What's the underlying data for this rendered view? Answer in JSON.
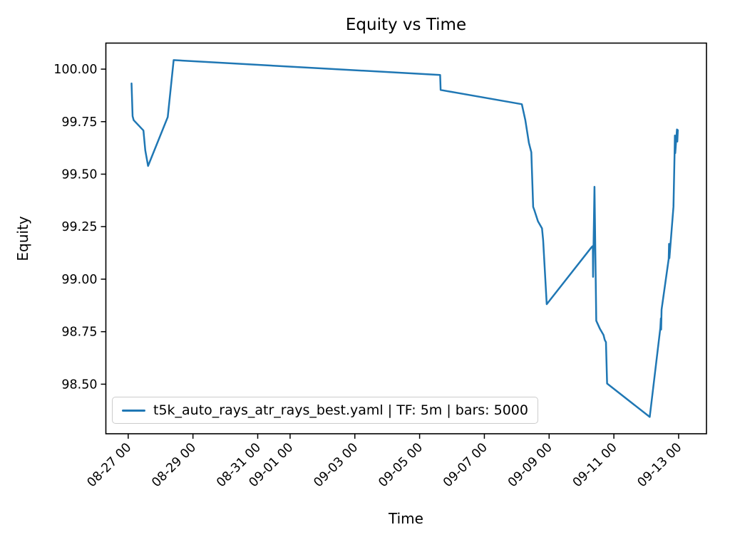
{
  "figure": {
    "background": "#ffffff",
    "spine_color": "#000000",
    "tick_color": "#000000"
  },
  "chart_data": {
    "type": "line",
    "title": "Equity vs Time",
    "xlabel": "Time",
    "ylabel": "Equity",
    "grid": false,
    "x_unit": "days since 08-27 00:00",
    "xlim": [
      -0.69,
      17.86
    ],
    "ylim": [
      98.264,
      100.124
    ],
    "yticks": [
      98.5,
      98.75,
      99.0,
      99.25,
      99.5,
      99.75,
      100.0
    ],
    "xticks": [
      {
        "label": "08-27 00",
        "d": 0
      },
      {
        "label": "08-29 00",
        "d": 2
      },
      {
        "label": "08-31 00",
        "d": 4
      },
      {
        "label": "09-01 00",
        "d": 5
      },
      {
        "label": "09-03 00",
        "d": 7
      },
      {
        "label": "09-05 00",
        "d": 9
      },
      {
        "label": "09-07 00",
        "d": 11
      },
      {
        "label": "09-09 00",
        "d": 13
      },
      {
        "label": "09-11 00",
        "d": 15
      },
      {
        "label": "09-13 00",
        "d": 17
      }
    ],
    "legend": {
      "position": "lower left"
    },
    "series": [
      {
        "name": "t5k_auto_rays_atr_rays_best.yaml | TF: 5m | bars: 5000",
        "color": "#1f77b4",
        "line_width": 2.5,
        "points": [
          [
            0.103,
            99.932
          ],
          [
            0.136,
            99.776
          ],
          [
            0.169,
            99.757
          ],
          [
            0.47,
            99.708
          ],
          [
            0.527,
            99.613
          ],
          [
            0.614,
            99.539
          ],
          [
            1.222,
            99.772
          ],
          [
            1.404,
            100.043
          ],
          [
            9.634,
            99.972
          ],
          [
            9.649,
            99.901
          ],
          [
            12.157,
            99.833
          ],
          [
            12.266,
            99.757
          ],
          [
            12.376,
            99.649
          ],
          [
            12.451,
            99.604
          ],
          [
            12.508,
            99.344
          ],
          [
            12.539,
            99.331
          ],
          [
            12.655,
            99.276
          ],
          [
            12.78,
            99.242
          ],
          [
            12.815,
            99.185
          ],
          [
            12.925,
            98.881
          ],
          [
            14.316,
            99.153
          ],
          [
            14.351,
            99.158
          ],
          [
            14.356,
            99.011
          ],
          [
            14.4,
            99.44
          ],
          [
            14.455,
            98.802
          ],
          [
            14.571,
            98.763
          ],
          [
            14.681,
            98.734
          ],
          [
            14.718,
            98.711
          ],
          [
            14.755,
            98.7
          ],
          [
            14.79,
            98.503
          ],
          [
            16.107,
            98.344
          ],
          [
            16.436,
            98.768
          ],
          [
            16.45,
            98.813
          ],
          [
            16.46,
            98.76
          ],
          [
            16.473,
            98.855
          ],
          [
            16.693,
            99.096
          ],
          [
            16.705,
            99.168
          ],
          [
            16.715,
            99.1
          ],
          [
            16.84,
            99.345
          ],
          [
            16.875,
            99.606
          ],
          [
            16.885,
            99.684
          ],
          [
            16.895,
            99.6
          ],
          [
            16.949,
            99.713
          ],
          [
            16.96,
            99.655
          ],
          [
            16.975,
            99.71
          ]
        ]
      }
    ]
  }
}
